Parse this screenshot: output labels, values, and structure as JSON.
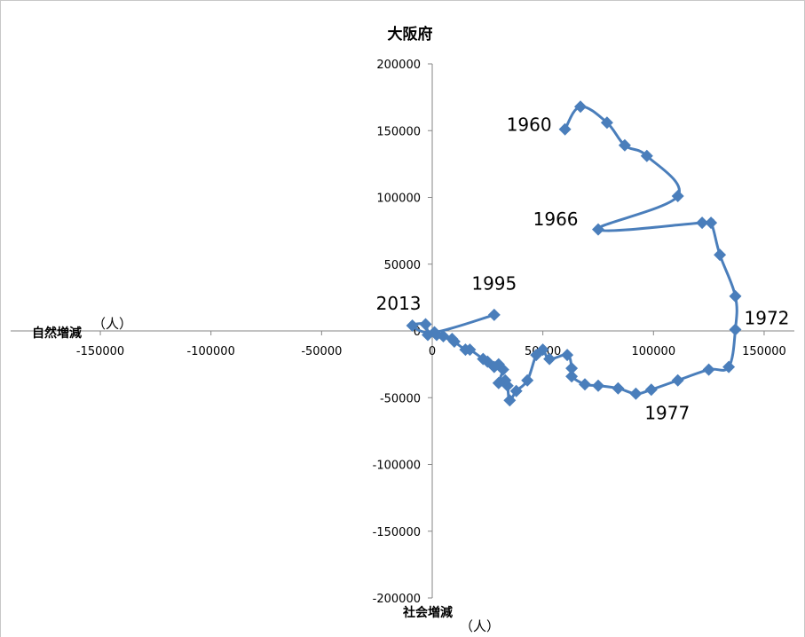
{
  "chart_data": {
    "type": "scatter",
    "title": "大阪府",
    "xlabel": "自然増減",
    "ylabel": "社会増減",
    "x_unit": "（人）",
    "y_unit": "（人）",
    "xlim": [
      -200000,
      170000
    ],
    "ylim": [
      -200000,
      200000
    ],
    "xticks": [
      -150000,
      -100000,
      -50000,
      0,
      50000,
      100000,
      150000
    ],
    "yticks": [
      200000,
      150000,
      100000,
      50000,
      0,
      -50000,
      -100000,
      -150000,
      -200000
    ],
    "color": "#4a7ebb",
    "points": [
      {
        "x": 60000,
        "y": 151000
      },
      {
        "x": 67000,
        "y": 168000
      },
      {
        "x": 79000,
        "y": 156000
      },
      {
        "x": 87000,
        "y": 139000
      },
      {
        "x": 97000,
        "y": 131000
      },
      {
        "x": 111000,
        "y": 101000
      },
      {
        "x": 75000,
        "y": 76000
      },
      {
        "x": 122000,
        "y": 81000
      },
      {
        "x": 126000,
        "y": 81000
      },
      {
        "x": 130000,
        "y": 57000
      },
      {
        "x": 137000,
        "y": 26000
      },
      {
        "x": 137000,
        "y": 1000
      },
      {
        "x": 134000,
        "y": -27000
      },
      {
        "x": 125000,
        "y": -29000
      },
      {
        "x": 111000,
        "y": -37000
      },
      {
        "x": 99000,
        "y": -44000
      },
      {
        "x": 92000,
        "y": -47000
      },
      {
        "x": 84000,
        "y": -43000
      },
      {
        "x": 75000,
        "y": -41000
      },
      {
        "x": 69000,
        "y": -40000
      },
      {
        "x": 63000,
        "y": -34000
      },
      {
        "x": 63000,
        "y": -28000
      },
      {
        "x": 61000,
        "y": -18000
      },
      {
        "x": 53000,
        "y": -21000
      },
      {
        "x": 50000,
        "y": -14000
      },
      {
        "x": 47000,
        "y": -18000
      },
      {
        "x": 43000,
        "y": -37000
      },
      {
        "x": 38000,
        "y": -45000
      },
      {
        "x": 35000,
        "y": -52000
      },
      {
        "x": 34000,
        "y": -41000
      },
      {
        "x": 33000,
        "y": -37000
      },
      {
        "x": 30000,
        "y": -39000
      },
      {
        "x": 32000,
        "y": -29000
      },
      {
        "x": 30000,
        "y": -25000
      },
      {
        "x": 28000,
        "y": -27000
      },
      {
        "x": 25000,
        "y": -23000
      },
      {
        "x": 23000,
        "y": -21000
      },
      {
        "x": 17000,
        "y": -14000
      },
      {
        "x": 15000,
        "y": -14000
      },
      {
        "x": 10000,
        "y": -8000
      },
      {
        "x": 9000,
        "y": -6000
      },
      {
        "x": 5000,
        "y": -4000
      },
      {
        "x": 2000,
        "y": -3000
      },
      {
        "x": -2000,
        "y": -3000
      },
      {
        "x": -3000,
        "y": 5000
      },
      {
        "x": -9000,
        "y": 4000
      },
      {
        "x": 1000,
        "y": -1000
      },
      {
        "x": 28000,
        "y": 12000
      }
    ],
    "annotations": [
      {
        "text": "1960",
        "x": 54000,
        "y": 150000
      },
      {
        "text": "1966",
        "x": 66000,
        "y": 79000
      },
      {
        "text": "1972",
        "x": 141000,
        "y": 5000
      },
      {
        "text": "1977",
        "x": 96000,
        "y": -66000
      },
      {
        "text": "1995",
        "x": 28000,
        "y": 31000
      },
      {
        "text": "2013",
        "x": -5000,
        "y": 16000
      }
    ]
  }
}
